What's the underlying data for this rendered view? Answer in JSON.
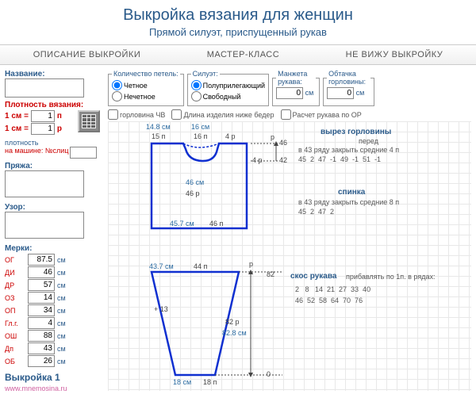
{
  "header": {
    "title": "Выкройка вязания для женщин",
    "subtitle": "Прямой силуэт, приспущенный рукав"
  },
  "tabs": {
    "t1": "ОПИСАНИЕ ВЫКРОЙКИ",
    "t2": "МАСТЕР-КЛАСС",
    "t3": "НЕ ВИЖУ ВЫКРОЙКУ"
  },
  "left": {
    "name_lbl": "Название:",
    "density_lbl": "Плотность вязания:",
    "d1l": "1 см =",
    "d1v": "1",
    "d1u": "п",
    "d2l": "1 см =",
    "d2v": "1",
    "d2u": "р",
    "mach_l1": "плотность",
    "mach_l2": "на машине: №слиц",
    "yarn_lbl": "Пряжа:",
    "pattern_lbl": "Узор:",
    "measures_lbl": "Мерки:",
    "m": [
      {
        "l": "ОГ",
        "v": "87.5"
      },
      {
        "l": "ДИ",
        "v": "46"
      },
      {
        "l": "ДР",
        "v": "57"
      },
      {
        "l": "ОЗ",
        "v": "14"
      },
      {
        "l": "ОП",
        "v": "34"
      },
      {
        "l": "Гл.г.",
        "v": "4"
      },
      {
        "l": "ОШ",
        "v": "88"
      },
      {
        "l": "Дп",
        "v": "43"
      },
      {
        "l": "ОБ",
        "v": "26"
      }
    ],
    "unit": "см",
    "vyk": "Выкройка 1",
    "site": "www.mnemosina.ru"
  },
  "right": {
    "loops_legend": "Количество петель:",
    "loops_even": "Четное",
    "loops_odd": "Нечетное",
    "sil_legend": "Силуэт:",
    "sil_1": "Полуприлегающий",
    "sil_2": "Свободный",
    "cuff_legend": "Манжета рукава:",
    "cuff_v": "0",
    "cuff_u": "см",
    "neck_legend": "Обтачка горловины:",
    "neck_v": "0",
    "neck_u": "см",
    "chk1": "горловина ЧВ",
    "chk2": "Длина изделия ниже бедер",
    "chk3": "Расчет рукава по ОР",
    "body": {
      "w_top_l": "14.8 см",
      "w_top_r": "16 см",
      "w_top_l2": "15 п",
      "w_top_r2": "16 п",
      "w_top_r3": "4 р",
      "mid_p": "4 р",
      "mid_r": "42",
      "h_cm": "46 см",
      "h_p": "46 р",
      "bot_cm": "45.7 см",
      "bot_p": "46 п",
      "neck_title": "вырез горловины",
      "front_lbl": "перед",
      "front_txt": "в 43 ряду закрыть средние 4 п",
      "front_nums": "45  2  47  -1  49  -1  51  -1",
      "back_lbl": "спинка",
      "back_txt": "в 43 ряду закрыть средние 8 п",
      "back_nums": "45  2  47  2",
      "r46": "46",
      "r42": "42"
    },
    "sleeve": {
      "top_cm": "43.7 см",
      "top_p": "44 п",
      "h": "82",
      "plus": "+ 13",
      "mid_p": "82 р",
      "mid_cm": "82.8 см",
      "bot_cm": "18 см",
      "bot_p": "18 п",
      "zero": "0",
      "skos": "скос рукава",
      "skos_txt": "прибавлять по 1п. в рядах:",
      "nums1": "2   8   14  21  27  33  40",
      "nums2": "46  52  58  64  70  76"
    }
  }
}
